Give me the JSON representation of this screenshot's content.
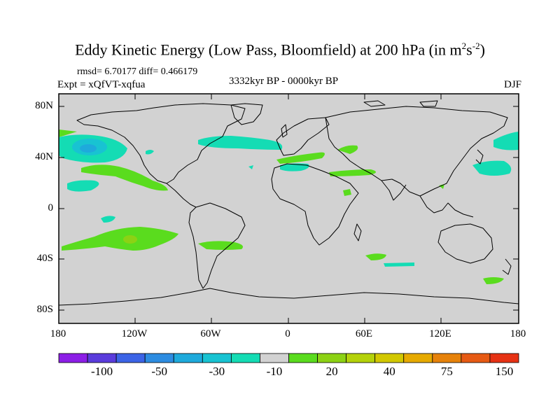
{
  "title_main": "Eddy Kinetic Energy (Low Pass, Bloomfield) at 200 hPa (in m",
  "title_sup1": "2",
  "title_mid": "s",
  "title_sup2": "-2",
  "title_end": ")",
  "stats": "rmsd= 6.70177 diff= 0.466179",
  "expt": "Expt = xQfVT-xqfua",
  "period": "3332kyr BP - 0000kyr BP",
  "season": "DJF",
  "y_ticks": [
    "80N",
    "40N",
    "0",
    "40S",
    "80S"
  ],
  "x_ticks": [
    "180",
    "120W",
    "60W",
    "0",
    "60E",
    "120E",
    "180"
  ],
  "colorbar": {
    "colors": [
      "#8c1ee6",
      "#5a3cdc",
      "#3c64e6",
      "#2d8ce1",
      "#1eaadc",
      "#18c3d2",
      "#14dcb4",
      "#d2d2d2",
      "#5adc1e",
      "#8cd214",
      "#b4d20a",
      "#d2c800",
      "#e6aa00",
      "#e6820a",
      "#e65a14",
      "#e63214"
    ],
    "labels": [
      "-100",
      "-50",
      "-30",
      "-10",
      "20",
      "40",
      "75",
      "150"
    ]
  },
  "colors": {
    "land_ocean": "#d2d2d2",
    "coast": "#000000"
  }
}
